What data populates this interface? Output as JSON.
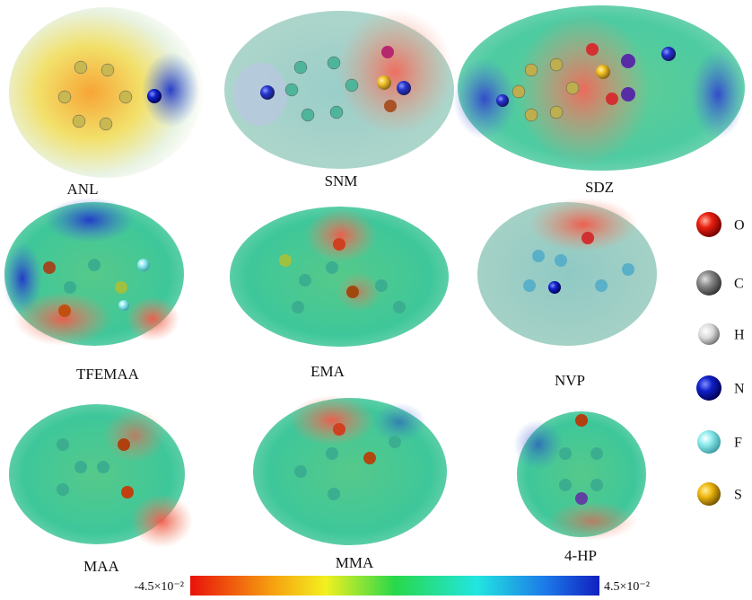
{
  "figure": {
    "molecules": [
      "ANL",
      "SNM",
      "SDZ",
      "TFEMAA",
      "EMA",
      "NVP",
      "MAA",
      "MMA",
      "4-HP"
    ],
    "legend": [
      "O",
      "C",
      "H",
      "N",
      "F",
      "S"
    ],
    "colorbar": {
      "min_label": "-4.5×10⁻²",
      "max_label": "4.5×10⁻²"
    }
  }
}
